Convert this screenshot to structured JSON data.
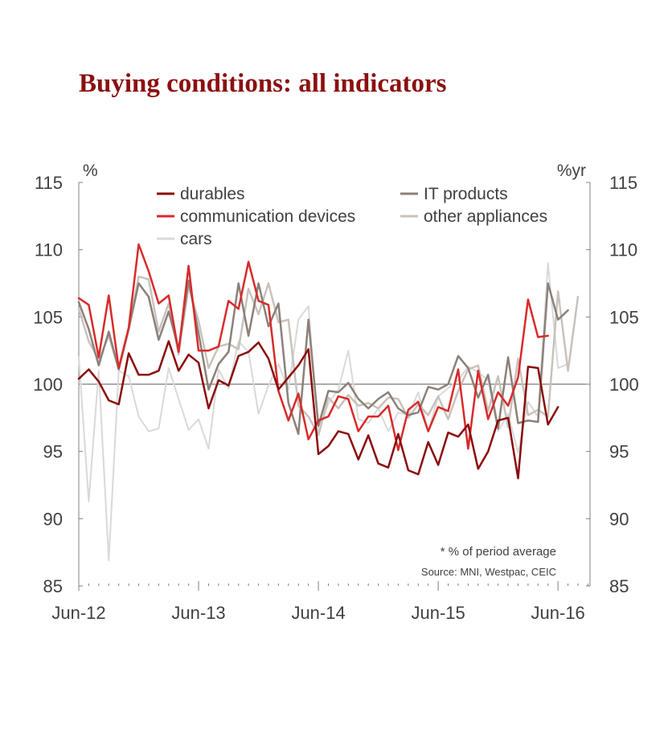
{
  "chart_data": {
    "type": "line",
    "title": "Buying conditions: all indicators",
    "y_left_unit": "%",
    "y_right_unit": "%yr",
    "ylim": [
      85,
      115
    ],
    "yticks": [
      85,
      90,
      95,
      100,
      105,
      110,
      115
    ],
    "x_tick_labels": [
      "Jun-12",
      "Jun-13",
      "Jun-14",
      "Jun-15",
      "Jun-16"
    ],
    "x_tick_months": [
      0,
      12,
      24,
      36,
      48
    ],
    "xlim_months": [
      0,
      48
    ],
    "reference_line": 100,
    "note": "* % of period average",
    "source": "Source: MNI, Westpac, CEIC",
    "legend_position": "top",
    "series": [
      {
        "name": "cars",
        "color": "#d9d9d9",
        "width": 2,
        "values": [
          102,
          91.3,
          101,
          86.9,
          101,
          100.6,
          97.6,
          96.5,
          96.7,
          101.2,
          98.9,
          96.6,
          97.4,
          95.2,
          101.1,
          99.7,
          103.2,
          102.4,
          97.8,
          99.9,
          101.5,
          99.6,
          104.8,
          105.8,
          96.4,
          98.6,
          99.6,
          102.5,
          97.4,
          97.1,
          98.2,
          96.5,
          97.9,
          97.7,
          99.4,
          96.5,
          99.1,
          99.7,
          100.3,
          101.3,
          100.9,
          100.3,
          96.5,
          97.8,
          94.9,
          98.7,
          97.6,
          109,
          101.2,
          101.5
        ]
      },
      {
        "name": "other appliances",
        "color": "#c8c2bb",
        "width": 2.5,
        "values": [
          105.6,
          103.2,
          101.8,
          103.6,
          101.1,
          104.1,
          108,
          107.8,
          103.9,
          106,
          102.2,
          107.3,
          104.7,
          101.2,
          102.8,
          103,
          102.6,
          107.1,
          105.2,
          107.5,
          104.6,
          104.8,
          98.4,
          97.6,
          96.2,
          99,
          98.2,
          99.2,
          98.4,
          98.6,
          98.2,
          99,
          98.9,
          97.5,
          98.5,
          97.7,
          99.1,
          97.4,
          99.5,
          101.1,
          101.4,
          98,
          100.6,
          96.8,
          101.9,
          97.7,
          98.1,
          97.6,
          106.9,
          101,
          106.5
        ]
      },
      {
        "name": "IT products",
        "color": "#8c8078",
        "width": 2.5,
        "values": [
          106.1,
          104.1,
          101.4,
          103.9,
          101.1,
          104.1,
          107.5,
          106.5,
          103.3,
          105.4,
          102.6,
          107.7,
          103.8,
          99.6,
          101.5,
          102.4,
          107.5,
          103.6,
          107.5,
          104.3,
          106,
          98.6,
          96.3,
          104.8,
          96.9,
          99.5,
          99.4,
          100.1,
          98.9,
          98.2,
          98.9,
          99.4,
          98.2,
          97.7,
          97.9,
          99.8,
          99.6,
          100,
          102.1,
          101.2,
          99,
          100.7,
          96.7,
          102,
          97.1,
          97.3,
          97.2,
          107.5,
          104.8,
          105.5
        ]
      },
      {
        "name": "communication devices",
        "color": "#d82a2a",
        "width": 2.5,
        "values": [
          106.4,
          105.9,
          102,
          106.6,
          101.2,
          104.2,
          110.4,
          108.4,
          106,
          106.6,
          102.4,
          108.8,
          102.5,
          102.5,
          102.8,
          106.2,
          105.6,
          109.1,
          106.2,
          105.9,
          99.5,
          97.3,
          99.3,
          95.9,
          97.3,
          97.6,
          99.1,
          98.9,
          96.5,
          97.6,
          97.6,
          98.4,
          95.1,
          98.1,
          98.7,
          96.5,
          98.3,
          98,
          101.1,
          95.2,
          101,
          97.4,
          99.4,
          98.4,
          100.5,
          106.3,
          103.5,
          103.6
        ]
      },
      {
        "name": "durables",
        "color": "#8b0b0b",
        "width": 2.5,
        "values": [
          100.4,
          101.1,
          100.2,
          98.8,
          98.5,
          102.3,
          100.7,
          100.7,
          101,
          103.2,
          101,
          102.2,
          101.6,
          98.2,
          100.3,
          99.9,
          102.1,
          102.4,
          103.1,
          101.9,
          99.6,
          100.5,
          101.4,
          102.6,
          94.8,
          95.4,
          96.5,
          96.3,
          94.4,
          96.2,
          94.1,
          93.8,
          96.3,
          93.6,
          93.3,
          95.7,
          94,
          96.4,
          96.1,
          97,
          93.7,
          95,
          97.3,
          97.5,
          93,
          101.3,
          101.2,
          97,
          98.3
        ]
      }
    ],
    "legend": [
      {
        "name": "durables",
        "color": "#8b0b0b"
      },
      {
        "name": "IT products",
        "color": "#8c8078"
      },
      {
        "name": "communication devices",
        "color": "#d82a2a"
      },
      {
        "name": "other appliances",
        "color": "#c8c2bb"
      },
      {
        "name": "cars",
        "color": "#d9d9d9"
      }
    ]
  }
}
